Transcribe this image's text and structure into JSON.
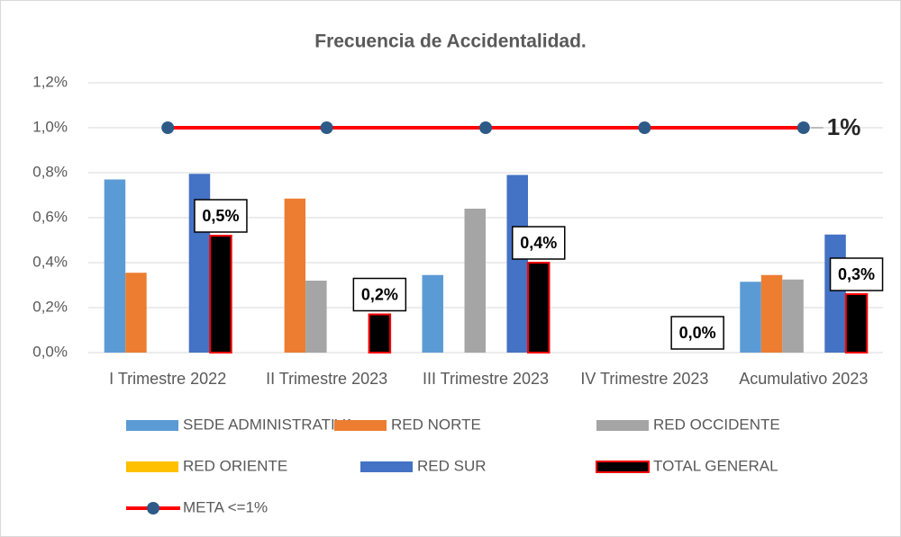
{
  "chart_data": {
    "type": "bar",
    "title": "Frecuencia de Accidentalidad.",
    "categories": [
      "I Trimestre 2022",
      "II Trimestre 2023",
      "III Trimestre 2023",
      "IV Trimestre 2023",
      "Acumulativo 2023"
    ],
    "series": [
      {
        "name": "SEDE ADMINISTRATIVA",
        "color": "#5b9bd5",
        "values": [
          0.77,
          0,
          0.345,
          0,
          0.315
        ]
      },
      {
        "name": "RED NORTE",
        "color": "#ed7d31",
        "values": [
          0.355,
          0.685,
          0,
          0,
          0.345
        ]
      },
      {
        "name": "RED OCCIDENTE",
        "color": "#a5a5a5",
        "values": [
          0,
          0.32,
          0.64,
          0,
          0.325
        ]
      },
      {
        "name": "RED ORIENTE",
        "color": "#ffc000",
        "values": [
          0,
          0,
          0,
          0,
          0
        ]
      },
      {
        "name": "RED SUR",
        "color": "#4472c4",
        "values": [
          0.795,
          0,
          0.79,
          0,
          0.525
        ]
      },
      {
        "name": "TOTAL GENERAL",
        "color": "#000000",
        "values": [
          0.52,
          0.17,
          0.4,
          0,
          0.26
        ],
        "value_labels": [
          "0,5%",
          "0,2%",
          "0,4%",
          "0,0%",
          "0,3%"
        ]
      },
      {
        "name": "META <=1%",
        "color": "#ff0000",
        "type": "line",
        "values": [
          1,
          1,
          1,
          1,
          1
        ],
        "value_labels": [
          null,
          null,
          null,
          null,
          "1%"
        ]
      }
    ],
    "ylim": [
      0,
      1.2
    ],
    "yticks": [
      {
        "value": 0,
        "label": "0,0%"
      },
      {
        "value": 0.2,
        "label": "0,2%"
      },
      {
        "value": 0.4,
        "label": "0,4%"
      },
      {
        "value": 0.6,
        "label": "0,6%"
      },
      {
        "value": 0.8,
        "label": "0,8%"
      },
      {
        "value": 1.0,
        "label": "1,0%"
      },
      {
        "value": 1.2,
        "label": "1,2%"
      }
    ],
    "grid": true
  }
}
